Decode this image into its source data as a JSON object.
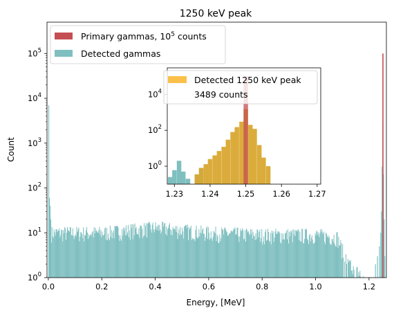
{
  "chart_data": [
    {
      "type": "bar",
      "title": "1250 keV peak",
      "xlabel": "Energy, [MeV]",
      "ylabel": "Count",
      "xlim": [
        -0.005,
        1.265
      ],
      "ylim": [
        1,
        500000
      ],
      "yscale": "log",
      "xticks": [
        {
          "value": 0.0,
          "label": "0.0"
        },
        {
          "value": 0.2,
          "label": "0.2"
        },
        {
          "value": 0.4,
          "label": "0.4"
        },
        {
          "value": 0.6,
          "label": "0.6"
        },
        {
          "value": 0.8,
          "label": "0.8"
        },
        {
          "value": 1.0,
          "label": "1.0"
        },
        {
          "value": 1.2,
          "label": "1.2"
        }
      ],
      "yticks": [
        {
          "value": 1,
          "base": "10",
          "exp": "0"
        },
        {
          "value": 10,
          "base": "10",
          "exp": "1"
        },
        {
          "value": 100,
          "base": "10",
          "exp": "2"
        },
        {
          "value": 1000,
          "base": "10",
          "exp": "3"
        },
        {
          "value": 10000,
          "base": "10",
          "exp": "4"
        },
        {
          "value": 100000,
          "base": "10",
          "exp": "5"
        }
      ],
      "legend_position": "upper-left",
      "series": [
        {
          "name_prefix": "Primary gammas, 10",
          "name_exp": "5",
          "name_suffix": " counts",
          "color": "#c44e52",
          "bars": [
            [
              1.25,
              100000
            ]
          ]
        },
        {
          "name": "Detected gammas",
          "color": "#7fbfc0",
          "bars_note": "continuum",
          "bars": [
            [
              0.0,
              7000
            ],
            [
              0.0025,
              60
            ],
            [
              0.005,
              40
            ],
            [
              0.0075,
              20
            ],
            [
              1.215,
              1
            ],
            [
              1.2225,
              2
            ],
            [
              1.23,
              3
            ],
            [
              1.2375,
              5
            ],
            [
              1.2425,
              10
            ],
            [
              1.245,
              30
            ],
            [
              1.2475,
              300
            ],
            [
              1.25,
              3000
            ],
            [
              1.2525,
              200
            ],
            [
              1.255,
              20
            ],
            [
              1.2575,
              3
            ]
          ],
          "continuum": [
            [
              0.01,
              10
            ],
            [
              0.2,
              10
            ],
            [
              0.4,
              13
            ],
            [
              0.6,
              10
            ],
            [
              0.8,
              9
            ],
            [
              1.0,
              9
            ],
            [
              1.08,
              8
            ],
            [
              1.12,
              2
            ],
            [
              1.18,
              1
            ]
          ]
        }
      ]
    },
    {
      "type": "bar",
      "title": "",
      "xlim": [
        1.228,
        1.271
      ],
      "ylim": [
        0.1,
        300000
      ],
      "yscale": "log",
      "xticks": [
        {
          "value": 1.23,
          "label": "1.23"
        },
        {
          "value": 1.24,
          "label": "1.24"
        },
        {
          "value": 1.25,
          "label": "1.25"
        },
        {
          "value": 1.26,
          "label": "1.26"
        },
        {
          "value": 1.27,
          "label": "1.27"
        }
      ],
      "yticks": [
        {
          "value": 1,
          "base": "10",
          "exp": "0"
        },
        {
          "value": 100,
          "base": "10",
          "exp": "2"
        },
        {
          "value": 10000,
          "base": "10",
          "exp": "4"
        }
      ],
      "bin_width": 0.00125,
      "series": [
        {
          "name": "Detected 1250 keV peak",
          "color": "#fbc04a",
          "bars": [
            [
              1.2363,
              0.35
            ],
            [
              1.2375,
              0.8
            ],
            [
              1.2388,
              1.3
            ],
            [
              1.24,
              2.5
            ],
            [
              1.2413,
              4
            ],
            [
              1.2425,
              7
            ],
            [
              1.2438,
              12
            ],
            [
              1.245,
              30
            ],
            [
              1.2463,
              80
            ],
            [
              1.2475,
              150
            ],
            [
              1.2488,
              300
            ],
            [
              1.25,
              1500
            ],
            [
              1.2513,
              200
            ],
            [
              1.2525,
              120
            ],
            [
              1.2538,
              15
            ],
            [
              1.255,
              3
            ],
            [
              1.2563,
              1
            ]
          ]
        },
        {
          "name": "",
          "color": "#7fbfc0",
          "bars": [
            [
              1.2288,
              0.25
            ],
            [
              1.23,
              0.6
            ],
            [
              1.2313,
              2
            ],
            [
              1.2325,
              0.5
            ],
            [
              1.2338,
              0.2
            ],
            [
              1.2363,
              0.35
            ],
            [
              1.2375,
              0.8
            ]
          ]
        },
        {
          "name": "",
          "color": "#c44e52",
          "bars": [
            [
              1.25,
              100000
            ]
          ]
        }
      ],
      "annotation": "3489 counts"
    }
  ]
}
